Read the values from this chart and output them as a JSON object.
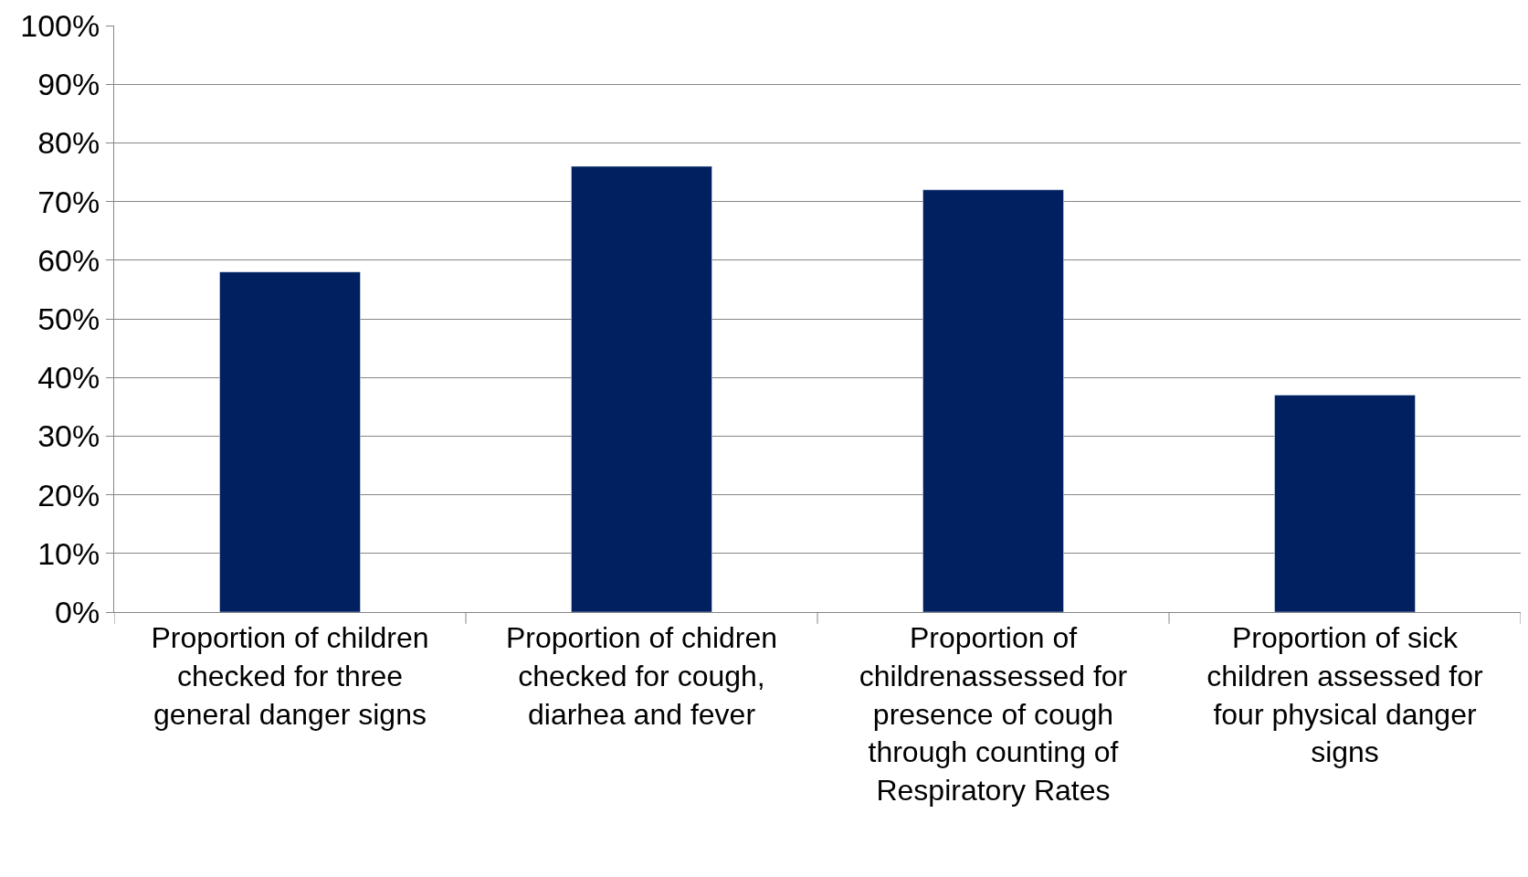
{
  "chart_data": {
    "type": "bar",
    "categories": [
      "Proportion of children checked for three general danger signs",
      "Proportion of chidren checked for cough, diarhea and fever",
      "Proportion of childrenassessed for presence of cough through counting of Respiratory Rates",
      "Proportion of sick children assessed for four physical danger signs"
    ],
    "values": [
      58,
      76,
      72,
      37
    ],
    "color": "#002060",
    "ylim": [
      0,
      100
    ],
    "yticks": [
      {
        "value": 0,
        "label": "0%"
      },
      {
        "value": 10,
        "label": "10%"
      },
      {
        "value": 20,
        "label": "20%"
      },
      {
        "value": 30,
        "label": "30%"
      },
      {
        "value": 40,
        "label": "40%"
      },
      {
        "value": 50,
        "label": "50%"
      },
      {
        "value": 60,
        "label": "60%"
      },
      {
        "value": 70,
        "label": "70%"
      },
      {
        "value": 80,
        "label": "80%"
      },
      {
        "value": 90,
        "label": "90%"
      },
      {
        "value": 100,
        "label": "100%"
      }
    ],
    "grid": "y"
  }
}
